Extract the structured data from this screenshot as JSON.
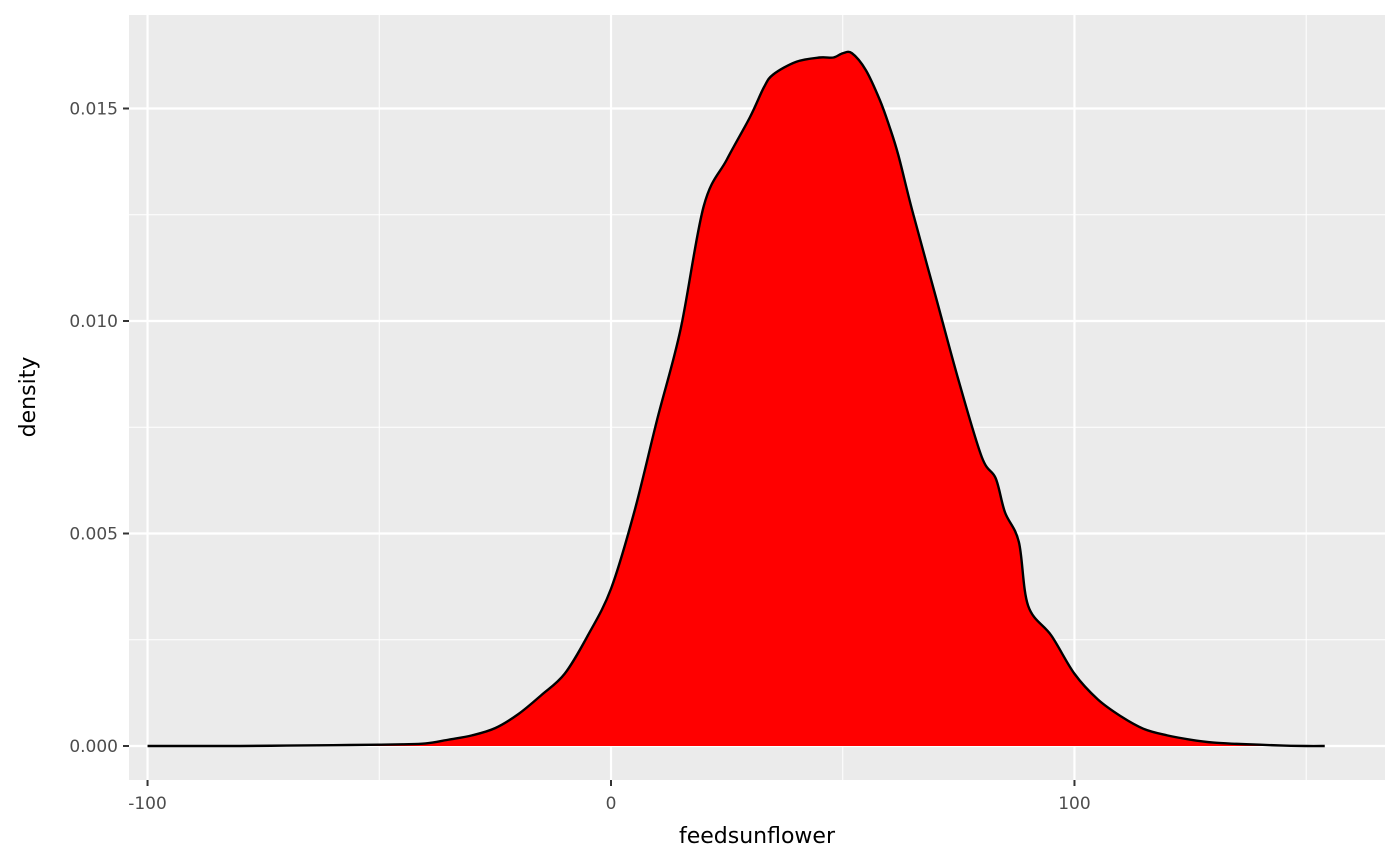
{
  "chart_data": {
    "type": "area",
    "title": "",
    "xlabel": "feedsunflower",
    "ylabel": "density",
    "xlim": [
      -104,
      167
    ],
    "ylim": [
      -0.0008,
      0.0172
    ],
    "x_ticks": [
      -100,
      0,
      100
    ],
    "x_tick_labels": [
      "-100",
      "0",
      "100"
    ],
    "x_minor_ticks": [
      -50,
      50,
      150
    ],
    "y_ticks": [
      0.0,
      0.005,
      0.01,
      0.015
    ],
    "y_tick_labels": [
      "0.000",
      "0.005",
      "0.010",
      "0.015"
    ],
    "y_minor_ticks": [
      0.0025,
      0.0075,
      0.0125
    ],
    "grid": true,
    "legend": "none",
    "colors": {
      "fill": "#ff0000",
      "outline": "#000000",
      "panel_background": "#ebebeb",
      "grid": "#ffffff"
    },
    "series": [
      {
        "x": [
          -100,
          -90,
          -80,
          -70,
          -60,
          -50,
          -45,
          -40,
          -35,
          -30,
          -25,
          -20,
          -15,
          -10,
          -5,
          0,
          5,
          10,
          15,
          20,
          25,
          30,
          33,
          35,
          40,
          45,
          48,
          50,
          52,
          55,
          58,
          60,
          62,
          65,
          70,
          75,
          80,
          83,
          85,
          88,
          90,
          95,
          100,
          105,
          110,
          115,
          120,
          125,
          130,
          135,
          140,
          145,
          150,
          154
        ],
        "y": [
          0.0,
          0.0,
          0.0,
          1e-05,
          2e-05,
          3e-05,
          4e-05,
          6e-05,
          0.00015,
          0.00025,
          0.00042,
          0.00075,
          0.0012,
          0.0017,
          0.0026,
          0.0037,
          0.0055,
          0.0077,
          0.0098,
          0.0127,
          0.0138,
          0.0148,
          0.0155,
          0.0158,
          0.0161,
          0.0162,
          0.0162,
          0.0163,
          0.0163,
          0.0159,
          0.0152,
          0.0146,
          0.0139,
          0.0126,
          0.0106,
          0.0086,
          0.0068,
          0.0063,
          0.0055,
          0.0048,
          0.0033,
          0.0026,
          0.0017,
          0.0011,
          0.0007,
          0.0004,
          0.00025,
          0.00015,
          8e-05,
          5e-05,
          3e-05,
          1e-05,
          0.0,
          0.0
        ]
      }
    ]
  }
}
